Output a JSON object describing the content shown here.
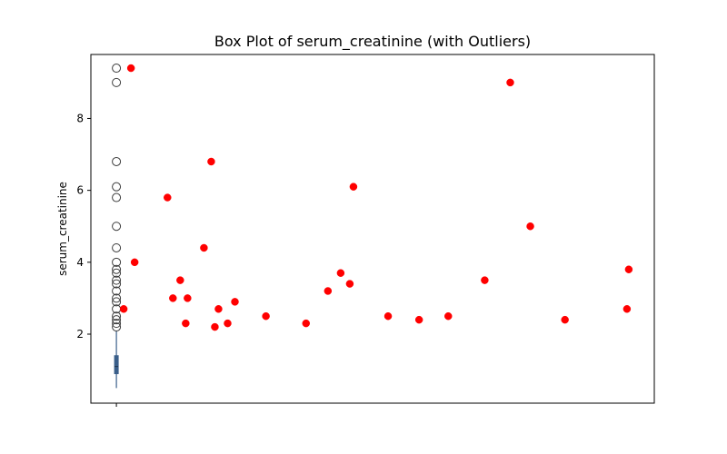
{
  "chart_data": {
    "type": "box",
    "title": "Box Plot of serum_creatinine (with Outliers)",
    "xlabel": "",
    "ylabel": "serum_creatinine",
    "ylim": [
      0.08,
      9.78
    ],
    "yticks": [
      2,
      4,
      6,
      8
    ],
    "grid": false,
    "colors": {
      "box": "#3a5f8a",
      "outlier_edge": "#3d3d3d",
      "scatter": "#ff0000"
    },
    "box": {
      "min": 0.5,
      "q1": 0.9,
      "median": 1.1,
      "q3": 1.4,
      "whisker_high": 2.1,
      "outliers": [
        9.4,
        9.0,
        6.8,
        6.1,
        5.8,
        5.0,
        4.4,
        4.0,
        3.8,
        3.7,
        3.5,
        3.4,
        3.2,
        3.0,
        2.9,
        2.7,
        2.5,
        2.4,
        2.3,
        2.2
      ]
    },
    "scatter_points": [
      {
        "x": 0.04,
        "y": 9.4
      },
      {
        "x": 0.05,
        "y": 4.0
      },
      {
        "x": 0.02,
        "y": 2.7
      },
      {
        "x": 0.14,
        "y": 5.8
      },
      {
        "x": 0.155,
        "y": 3.0
      },
      {
        "x": 0.175,
        "y": 3.5
      },
      {
        "x": 0.19,
        "y": 2.3
      },
      {
        "x": 0.195,
        "y": 3.0
      },
      {
        "x": 0.24,
        "y": 4.4
      },
      {
        "x": 0.26,
        "y": 6.8
      },
      {
        "x": 0.27,
        "y": 2.2
      },
      {
        "x": 0.28,
        "y": 2.7
      },
      {
        "x": 0.305,
        "y": 2.3
      },
      {
        "x": 0.325,
        "y": 2.9
      },
      {
        "x": 0.41,
        "y": 2.5
      },
      {
        "x": 0.52,
        "y": 2.3
      },
      {
        "x": 0.58,
        "y": 3.2
      },
      {
        "x": 0.615,
        "y": 3.7
      },
      {
        "x": 0.64,
        "y": 3.4
      },
      {
        "x": 0.65,
        "y": 6.1
      },
      {
        "x": 0.745,
        "y": 2.5
      },
      {
        "x": 0.83,
        "y": 2.4
      },
      {
        "x": 0.91,
        "y": 2.5
      },
      {
        "x": 1.01,
        "y": 3.5
      },
      {
        "x": 1.08,
        "y": 9.0
      },
      {
        "x": 1.135,
        "y": 5.0
      },
      {
        "x": 1.23,
        "y": 2.4
      },
      {
        "x": 1.4,
        "y": 2.7
      },
      {
        "x": 1.405,
        "y": 3.8
      }
    ],
    "xlim": [
      -0.07,
      1.475
    ]
  }
}
